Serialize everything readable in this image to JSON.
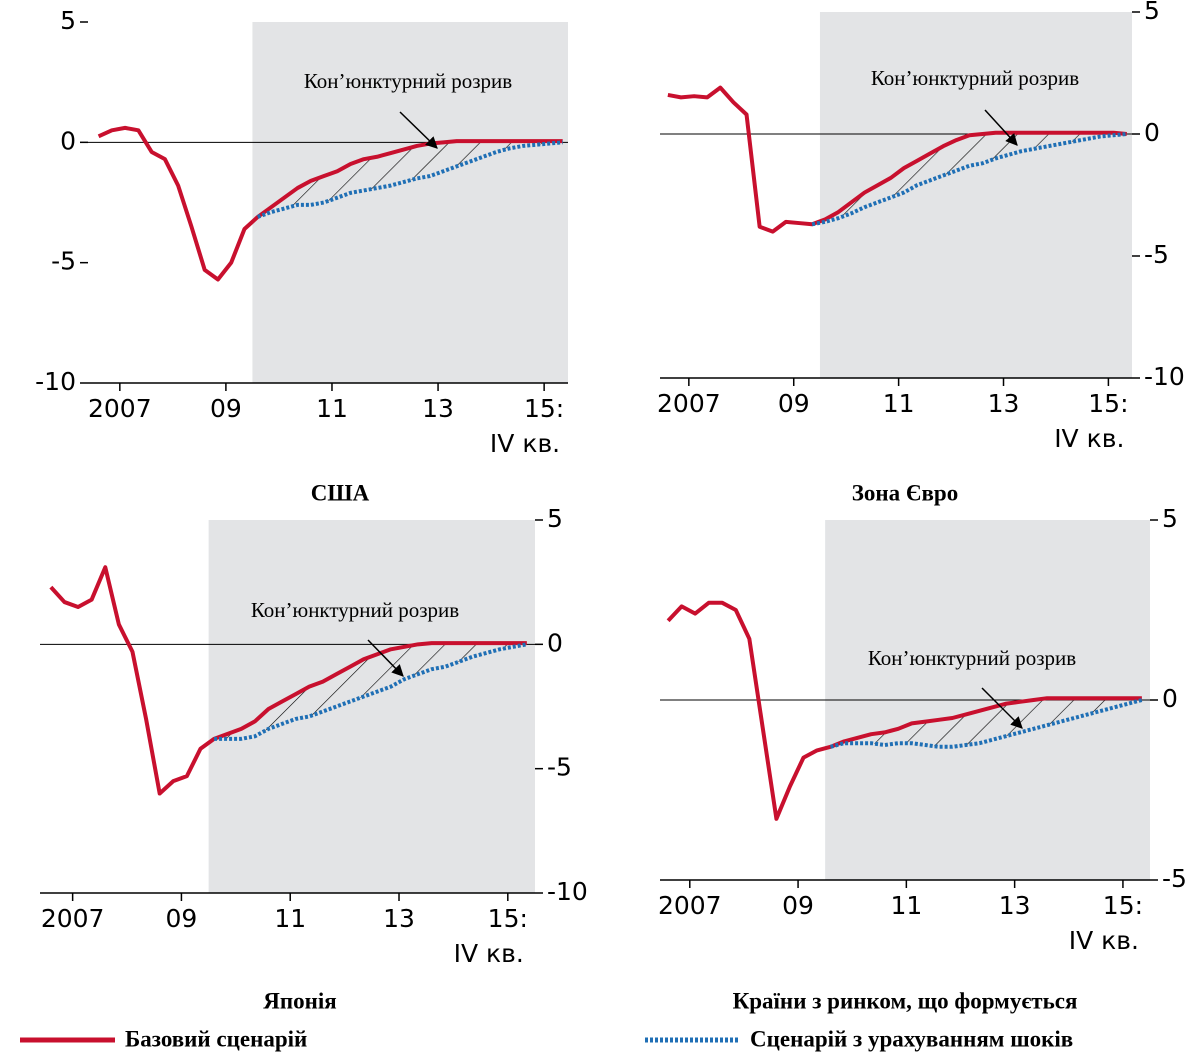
{
  "chart_data": [
    {
      "type": "line",
      "title": "США",
      "annotation": "Кон’юнктурний розрив",
      "x_note": "IV кв.",
      "yaxis_side": "left",
      "shade_from": 2009.9,
      "x": [
        2007,
        2007.25,
        2007.5,
        2007.75,
        2008,
        2008.25,
        2008.5,
        2008.75,
        2009,
        2009.25,
        2009.5,
        2009.75,
        2010,
        2010.25,
        2010.5,
        2010.75,
        2011,
        2011.25,
        2011.5,
        2011.75,
        2012,
        2012.25,
        2012.5,
        2012.75,
        2013,
        2013.25,
        2013.5,
        2013.75,
        2014,
        2014.25,
        2014.5,
        2014.75,
        2015,
        2015.25,
        2015.5,
        2015.75
      ],
      "xlim": [
        2006.8,
        2015.85
      ],
      "xticks": [
        {
          "value": 2007.4,
          "label": "2007"
        },
        {
          "value": 2009.4,
          "label": "09"
        },
        {
          "value": 2011.4,
          "label": "11"
        },
        {
          "value": 2013.4,
          "label": "13"
        },
        {
          "value": 2015.4,
          "label": "15:"
        }
      ],
      "ylim": [
        -10,
        5
      ],
      "yticks": [
        -10,
        -5,
        0,
        5
      ],
      "series": [
        {
          "color": "#c8102e",
          "style": "solid",
          "values": [
            0.25,
            0.5,
            0.6,
            0.5,
            -0.4,
            -0.7,
            -1.8,
            -3.5,
            -5.3,
            -5.7,
            -5,
            -3.6,
            -3.1,
            -2.7,
            -2.3,
            -1.9,
            -1.6,
            -1.4,
            -1.2,
            -0.9,
            -0.7,
            -0.6,
            -0.45,
            -0.3,
            -0.15,
            -0.05,
            0,
            0.05,
            0.05,
            0.05,
            0.05,
            0.05,
            0.05,
            0.05,
            0.05,
            0.05
          ]
        },
        {
          "color": "#1f6fb5",
          "style": "dotted",
          "values": [
            null,
            null,
            null,
            null,
            null,
            null,
            null,
            null,
            null,
            null,
            null,
            null,
            -3.1,
            -2.9,
            -2.75,
            -2.6,
            -2.6,
            -2.5,
            -2.3,
            -2.1,
            -2.0,
            -1.9,
            -1.8,
            -1.65,
            -1.5,
            -1.4,
            -1.2,
            -1.0,
            -0.8,
            -0.6,
            -0.4,
            -0.25,
            -0.15,
            -0.1,
            -0.05,
            0
          ]
        }
      ]
    },
    {
      "type": "line",
      "title": "Зона Євро",
      "annotation": "Кон’юнктурний розрив",
      "x_note": "IV кв.",
      "yaxis_side": "right",
      "shade_from": 2009.9,
      "x": [
        2007,
        2007.25,
        2007.5,
        2007.75,
        2008,
        2008.25,
        2008.5,
        2008.75,
        2009,
        2009.25,
        2009.5,
        2009.75,
        2010,
        2010.25,
        2010.5,
        2010.75,
        2011,
        2011.25,
        2011.5,
        2011.75,
        2012,
        2012.25,
        2012.5,
        2012.75,
        2013,
        2013.25,
        2013.5,
        2013.75,
        2014,
        2014.25,
        2014.5,
        2014.75,
        2015,
        2015.25,
        2015.5,
        2015.75
      ],
      "xlim": [
        2006.85,
        2015.85
      ],
      "xticks": [
        {
          "value": 2007.4,
          "label": "2007"
        },
        {
          "value": 2009.4,
          "label": "09"
        },
        {
          "value": 2011.4,
          "label": "11"
        },
        {
          "value": 2013.4,
          "label": "13"
        },
        {
          "value": 2015.4,
          "label": "15:"
        }
      ],
      "ylim": [
        -10,
        5
      ],
      "yticks": [
        -10,
        -5,
        0,
        5
      ],
      "series": [
        {
          "color": "#c8102e",
          "style": "solid",
          "values": [
            1.6,
            1.5,
            1.55,
            1.5,
            1.9,
            1.3,
            0.8,
            -3.8,
            -4.0,
            -3.6,
            -3.65,
            -3.7,
            -3.5,
            -3.2,
            -2.8,
            -2.4,
            -2.1,
            -1.8,
            -1.4,
            -1.1,
            -0.8,
            -0.5,
            -0.25,
            -0.05,
            0,
            0.05,
            0.05,
            0.05,
            0.05,
            0.05,
            0.05,
            0.05,
            0.05,
            0.05,
            0.05,
            0
          ]
        },
        {
          "color": "#1f6fb5",
          "style": "dotted",
          "values": [
            null,
            null,
            null,
            null,
            null,
            null,
            null,
            null,
            null,
            null,
            null,
            -3.7,
            -3.6,
            -3.45,
            -3.25,
            -3.0,
            -2.8,
            -2.6,
            -2.4,
            -2.1,
            -1.9,
            -1.7,
            -1.5,
            -1.3,
            -1.2,
            -1.0,
            -0.85,
            -0.7,
            -0.6,
            -0.5,
            -0.4,
            -0.3,
            -0.2,
            -0.1,
            -0.05,
            0
          ]
        }
      ]
    },
    {
      "type": "line",
      "title": "Японія",
      "annotation": "Кон’юнктурний розрив",
      "x_note": "IV кв.",
      "yaxis_side": "right",
      "shade_from": 2009.9,
      "x": [
        2007,
        2007.25,
        2007.5,
        2007.75,
        2008,
        2008.25,
        2008.5,
        2008.75,
        2009,
        2009.25,
        2009.5,
        2009.75,
        2010,
        2010.25,
        2010.5,
        2010.75,
        2011,
        2011.25,
        2011.5,
        2011.75,
        2012,
        2012.25,
        2012.5,
        2012.75,
        2013,
        2013.25,
        2013.5,
        2013.75,
        2014,
        2014.25,
        2014.5,
        2014.75,
        2015,
        2015.25,
        2015.5,
        2015.75
      ],
      "xlim": [
        2006.8,
        2015.9
      ],
      "xticks": [
        {
          "value": 2007.4,
          "label": "2007"
        },
        {
          "value": 2009.4,
          "label": "09"
        },
        {
          "value": 2011.4,
          "label": "11"
        },
        {
          "value": 2013.4,
          "label": "13"
        },
        {
          "value": 2015.4,
          "label": "15:"
        }
      ],
      "ylim": [
        -10,
        5
      ],
      "yticks": [
        -10,
        -5,
        0,
        5
      ],
      "series": [
        {
          "color": "#c8102e",
          "style": "solid",
          "values": [
            2.3,
            1.7,
            1.5,
            1.8,
            3.1,
            0.8,
            -0.3,
            -3.0,
            -6.0,
            -5.5,
            -5.3,
            -4.2,
            -3.8,
            -3.6,
            -3.4,
            -3.1,
            -2.6,
            -2.3,
            -2.0,
            -1.7,
            -1.5,
            -1.2,
            -0.9,
            -0.6,
            -0.4,
            -0.2,
            -0.1,
            0,
            0.05,
            0.05,
            0.05,
            0.05,
            0.05,
            0.05,
            0.05,
            0.05
          ]
        },
        {
          "color": "#1f6fb5",
          "style": "dotted",
          "values": [
            null,
            null,
            null,
            null,
            null,
            null,
            null,
            null,
            null,
            null,
            null,
            null,
            -3.8,
            -3.8,
            -3.8,
            -3.7,
            -3.4,
            -3.2,
            -3.0,
            -2.9,
            -2.7,
            -2.5,
            -2.3,
            -2.1,
            -1.9,
            -1.7,
            -1.4,
            -1.2,
            -1.0,
            -0.9,
            -0.7,
            -0.5,
            -0.35,
            -0.2,
            -0.1,
            0
          ]
        }
      ]
    },
    {
      "type": "line",
      "title": "Країни з ринком, що формується",
      "annotation": "Кон’юнктурний розрив",
      "x_note": "IV кв.",
      "yaxis_side": "right",
      "shade_from": 2009.9,
      "x": [
        2007,
        2007.25,
        2007.5,
        2007.75,
        2008,
        2008.25,
        2008.5,
        2008.75,
        2009,
        2009.25,
        2009.5,
        2009.75,
        2010,
        2010.25,
        2010.5,
        2010.75,
        2011,
        2011.25,
        2011.5,
        2011.75,
        2012,
        2012.25,
        2012.5,
        2012.75,
        2013,
        2013.25,
        2013.5,
        2013.75,
        2014,
        2014.25,
        2014.5,
        2014.75,
        2015,
        2015.25,
        2015.5,
        2015.75
      ],
      "xlim": [
        2006.85,
        2015.9
      ],
      "xticks": [
        {
          "value": 2007.4,
          "label": "2007"
        },
        {
          "value": 2009.4,
          "label": "09"
        },
        {
          "value": 2011.4,
          "label": "11"
        },
        {
          "value": 2013.4,
          "label": "13"
        },
        {
          "value": 2015.4,
          "label": "15:"
        }
      ],
      "ylim": [
        -5,
        5
      ],
      "yticks": [
        -5,
        0,
        5
      ],
      "series": [
        {
          "color": "#c8102e",
          "style": "solid",
          "values": [
            2.2,
            2.6,
            2.4,
            2.7,
            2.7,
            2.5,
            1.7,
            -0.8,
            -3.3,
            -2.4,
            -1.6,
            -1.4,
            -1.3,
            -1.15,
            -1.05,
            -0.95,
            -0.9,
            -0.8,
            -0.65,
            -0.6,
            -0.55,
            -0.5,
            -0.4,
            -0.3,
            -0.2,
            -0.1,
            -0.05,
            0,
            0.05,
            0.05,
            0.05,
            0.05,
            0.05,
            0.05,
            0.05,
            0.05
          ]
        },
        {
          "color": "#1f6fb5",
          "style": "dotted",
          "values": [
            null,
            null,
            null,
            null,
            null,
            null,
            null,
            null,
            null,
            null,
            null,
            null,
            -1.3,
            -1.2,
            -1.2,
            -1.2,
            -1.25,
            -1.2,
            -1.2,
            -1.25,
            -1.3,
            -1.3,
            -1.25,
            -1.2,
            -1.1,
            -1.0,
            -0.9,
            -0.8,
            -0.7,
            -0.6,
            -0.5,
            -0.4,
            -0.3,
            -0.2,
            -0.1,
            0
          ]
        }
      ]
    }
  ],
  "legend": [
    "Базовий сценарій",
    "Сценарій з урахуванням шоків"
  ]
}
